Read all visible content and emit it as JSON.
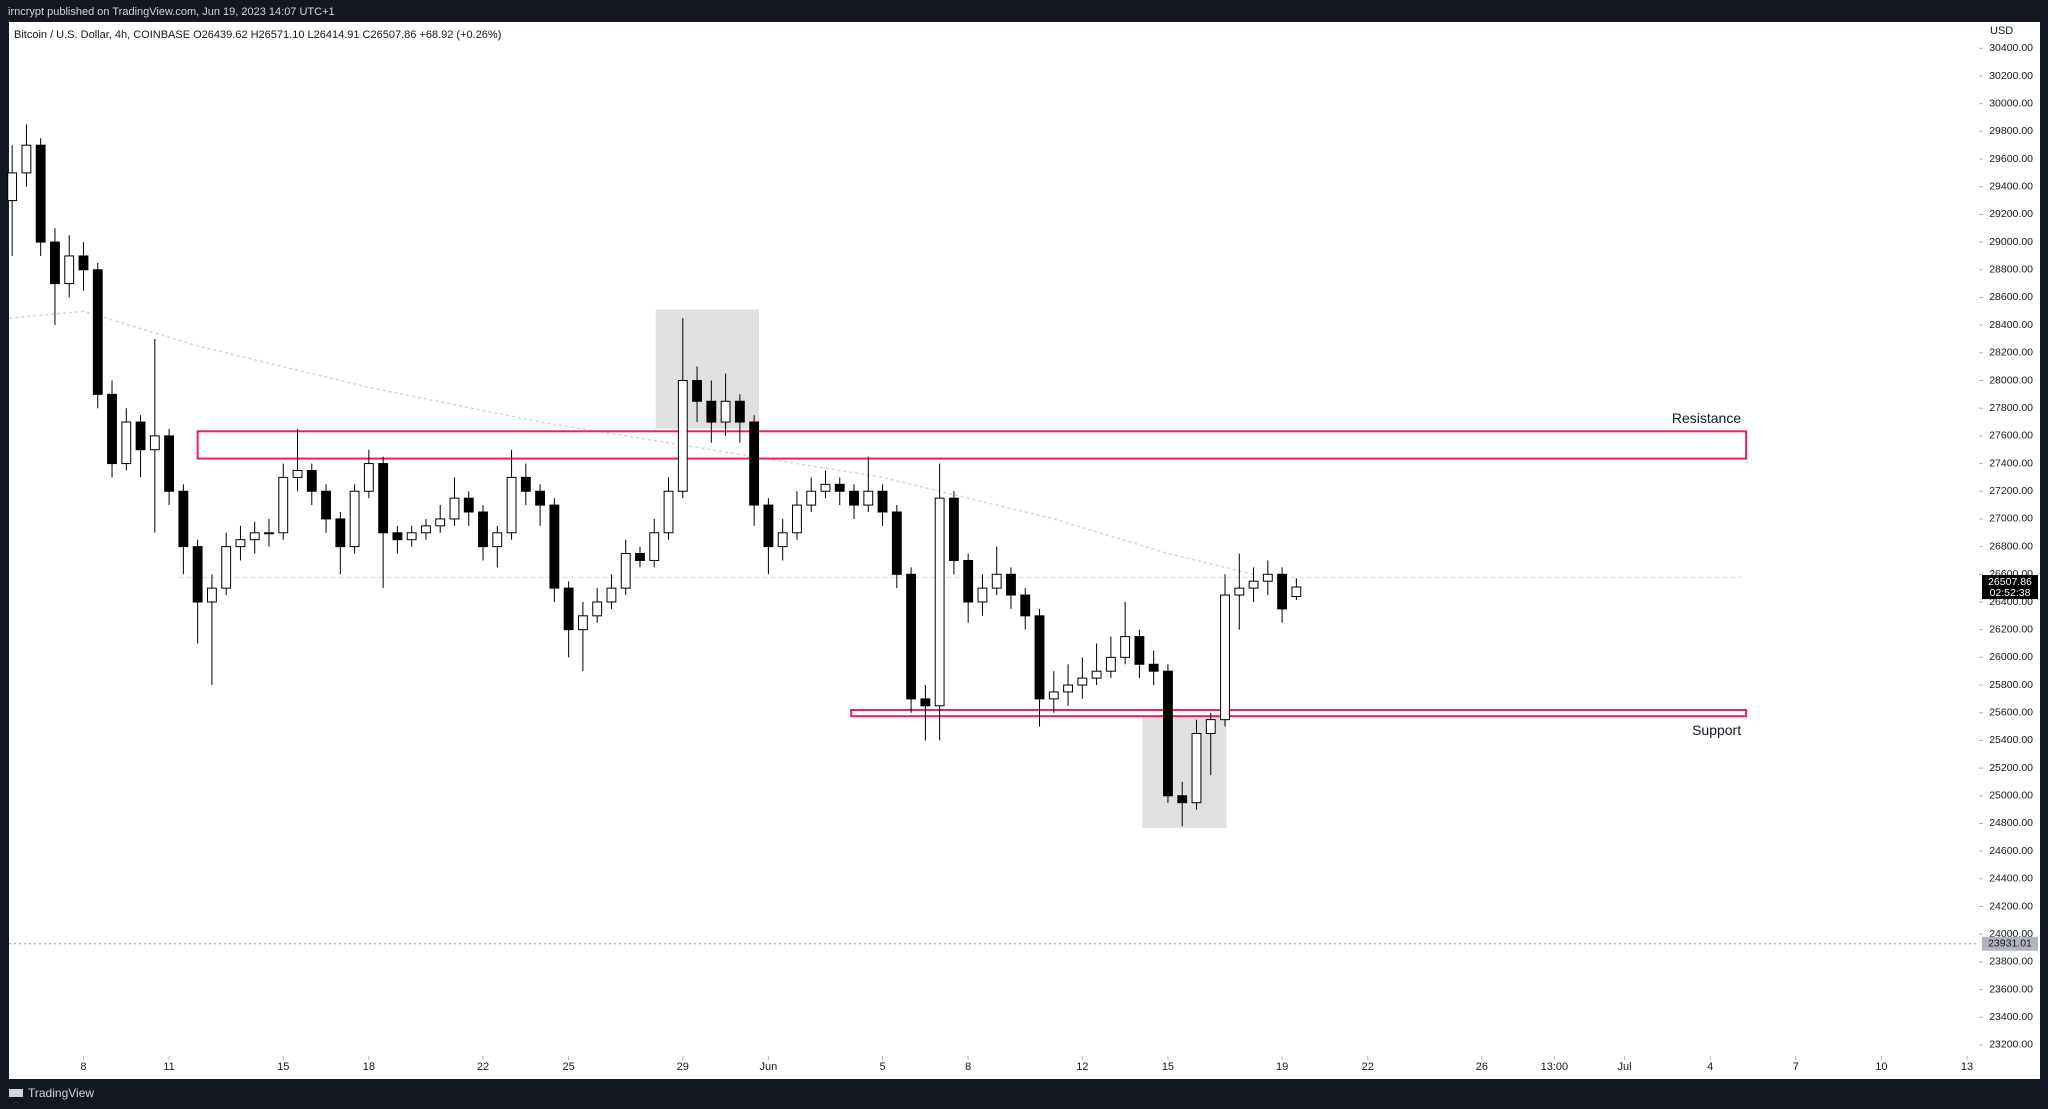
{
  "header": {
    "published": "irncrypt published on TradingView.com, Jun 19, 2023 14:07 UTC+1"
  },
  "footer": {
    "brand": "TradingView"
  },
  "chart_data": {
    "type": "candlestick",
    "title": "Bitcoin / U.S. Dollar, 4h, COINBASE  O26439.62  H26571.10  L26414.91  C26507.86  +68.92 (+0.26%)",
    "currency": "USD",
    "up_color": "#ffffff",
    "down_color": "#000000",
    "outline_color": "#000000",
    "grid": false,
    "x": [
      5.5,
      6,
      6.5,
      7,
      7.5,
      8,
      8.5,
      9,
      9.5,
      10,
      10.5,
      11,
      11.5,
      12,
      12.5,
      13,
      13.5,
      14,
      14.5,
      15,
      15.5,
      16,
      16.5,
      17,
      17.5,
      18,
      18.5,
      19,
      19.5,
      20,
      20.5,
      21,
      21.5,
      22,
      22.5,
      23,
      23.5,
      24,
      24.5,
      25,
      25.5,
      26,
      26.5,
      27,
      27.5,
      28,
      28.5,
      29,
      29.5,
      30,
      30.5,
      31,
      31.5,
      32,
      32.5,
      33,
      33.5,
      34,
      34.5,
      35,
      35.5,
      36,
      36.5,
      37,
      37.5,
      38,
      38.5,
      39,
      39.5,
      40,
      40.5,
      41,
      41.5,
      42,
      42.5,
      43,
      43.5,
      44,
      44.5,
      45,
      45.5,
      46,
      46.5,
      47,
      47.5,
      48,
      48.5,
      49,
      49.5,
      50,
      50.5
    ],
    "open": [
      29300,
      29500,
      29700,
      29000,
      28700,
      28900,
      28800,
      27900,
      27400,
      27700,
      27500,
      27600,
      27200,
      26800,
      26400,
      26500,
      26800,
      26850,
      26900,
      26900,
      27300,
      27350,
      27200,
      27000,
      26800,
      27200,
      27400,
      26900,
      26850,
      26900,
      26950,
      27000,
      27150,
      27050,
      26800,
      26900,
      27300,
      27200,
      27100,
      26500,
      26200,
      26300,
      26400,
      26500,
      26750,
      26700,
      26900,
      27200,
      28000,
      27850,
      27700,
      27850,
      27700,
      27100,
      26800,
      26900,
      27100,
      27200,
      27250,
      27200,
      27100,
      27200,
      27050,
      26600,
      25700,
      25650,
      27150,
      26700,
      26400,
      26500,
      26600,
      26450,
      26300,
      25700,
      25750,
      25800,
      25850,
      25900,
      26000,
      26150,
      25950,
      25900,
      25000,
      24950,
      25450,
      25550,
      26450,
      26500,
      26550,
      26600,
      26439.62
    ],
    "high": [
      29700,
      29850,
      29750,
      29100,
      29050,
      29000,
      28850,
      28000,
      27800,
      27750,
      28300,
      27650,
      27250,
      26850,
      26600,
      26900,
      26950,
      26980,
      27000,
      27400,
      27650,
      27400,
      27250,
      27050,
      27250,
      27500,
      27450,
      26950,
      26950,
      27000,
      27100,
      27300,
      27200,
      27100,
      26950,
      27500,
      27400,
      27250,
      27150,
      26550,
      26400,
      26500,
      26600,
      26850,
      26800,
      27000,
      27300,
      28450,
      28100,
      28000,
      28050,
      27900,
      27750,
      27150,
      27000,
      27200,
      27300,
      27350,
      27300,
      27250,
      27450,
      27250,
      27100,
      26650,
      25800,
      27400,
      27200,
      26750,
      26600,
      26800,
      26650,
      26500,
      26350,
      25900,
      25950,
      26000,
      26100,
      26150,
      26400,
      26200,
      26050,
      25950,
      25100,
      25550,
      25600,
      26600,
      26750,
      26650,
      26700,
      26650,
      26571.1
    ],
    "low": [
      28900,
      29400,
      28900,
      28400,
      28600,
      28650,
      27800,
      27300,
      27350,
      27300,
      26900,
      27100,
      26600,
      26100,
      25800,
      26450,
      26700,
      26750,
      26800,
      26850,
      27200,
      27100,
      26900,
      26600,
      26750,
      27150,
      26500,
      26750,
      26800,
      26850,
      26900,
      26950,
      26950,
      26700,
      26650,
      26850,
      27100,
      26950,
      26400,
      26000,
      25900,
      26250,
      26350,
      26450,
      26650,
      26650,
      26850,
      27150,
      27700,
      27550,
      27600,
      27550,
      26950,
      26600,
      26700,
      26850,
      27050,
      27150,
      27100,
      27000,
      27050,
      26950,
      26500,
      25600,
      25400,
      25400,
      26600,
      26250,
      26300,
      26450,
      26350,
      26200,
      25500,
      25600,
      25650,
      25700,
      25800,
      25850,
      25950,
      25850,
      25800,
      24950,
      24780,
      24900,
      25150,
      25500,
      26200,
      26400,
      26450,
      26250,
      26414.91
    ],
    "close": [
      29500,
      29700,
      29000,
      28700,
      28900,
      28800,
      27900,
      27400,
      27700,
      27500,
      27600,
      27200,
      26800,
      26400,
      26500,
      26800,
      26850,
      26900,
      26900,
      27300,
      27350,
      27200,
      27000,
      26800,
      27200,
      27400,
      26900,
      26850,
      26900,
      26950,
      27000,
      27150,
      27050,
      26800,
      26900,
      27300,
      27200,
      27100,
      26500,
      26200,
      26300,
      26400,
      26500,
      26750,
      26700,
      26900,
      27200,
      28000,
      27850,
      27700,
      27850,
      27700,
      27100,
      26800,
      26900,
      27100,
      27200,
      27250,
      27200,
      27100,
      27200,
      27050,
      26600,
      25700,
      25650,
      27150,
      26700,
      26400,
      26500,
      26600,
      26450,
      26300,
      25700,
      25750,
      25800,
      25850,
      25900,
      26000,
      26150,
      25950,
      25900,
      25000,
      24950,
      25450,
      25550,
      26450,
      26500,
      26550,
      26600,
      26350,
      26507.86
    ],
    "countdown": "02:52:38",
    "level_line": 23931.01,
    "moving_average": {
      "color": "#d1d4dc",
      "x": [
        5.4,
        8,
        12,
        18,
        24,
        30,
        36,
        42,
        46,
        49
      ],
      "values": [
        28450,
        28500,
        28250,
        27950,
        27700,
        27500,
        27300,
        27000,
        26750,
        26600
      ]
    },
    "levels": [
      {
        "value": 26578,
        "x": [
          11.35,
          66.1
        ],
        "color": "#d1d4dc"
      }
    ],
    "highlights": [
      {
        "x": [
          28.05,
          31.67
        ],
        "y": [
          27654,
          28513
        ],
        "color": "#e0e0e0"
      },
      {
        "x": [
          45.1,
          48.05
        ],
        "y": [
          24766,
          25577
        ],
        "color": "#e0e0e0"
      }
    ],
    "zones": [
      {
        "label": "Resistance",
        "x": [
          12.0,
          66.26
        ],
        "y": [
          27436,
          27633
        ],
        "color": "#e91e63",
        "label_position": "above"
      },
      {
        "label": "Support",
        "x": [
          34.9,
          66.26
        ],
        "y": [
          25575,
          25620
        ],
        "color": "#e91e63",
        "label_position": "below"
      }
    ],
    "xlim": [
      5.39,
      74.42
    ],
    "ylim": [
      23120,
      30590
    ],
    "xticks": [
      8,
      11,
      15,
      18,
      22,
      25,
      29,
      {
        "value": 32,
        "label": "Jun"
      },
      {
        "value": 36,
        "label": "5"
      },
      {
        "value": 39,
        "label": "8"
      },
      {
        "value": 43,
        "label": "12"
      },
      {
        "value": 46,
        "label": "15"
      },
      {
        "value": 50,
        "label": "19"
      },
      {
        "value": 53,
        "label": "22"
      },
      {
        "value": 57,
        "label": "26"
      },
      {
        "value": 59.54,
        "label": "13:00"
      },
      {
        "value": 62,
        "label": "Jul"
      },
      {
        "value": 65,
        "label": "4"
      },
      {
        "value": 68,
        "label": "7"
      },
      {
        "value": 71,
        "label": "10"
      },
      {
        "value": 74,
        "label": "13"
      }
    ],
    "yticks": [
      {
        "value": 23200,
        "label": "23200.00"
      },
      {
        "value": 23400,
        "label": "23400.00"
      },
      {
        "value": 23600,
        "label": "23600.00"
      },
      {
        "value": 23800,
        "label": "23800.00"
      },
      {
        "value": 24000,
        "label": "24000.00"
      },
      {
        "value": 24200,
        "label": "24200.00"
      },
      {
        "value": 24400,
        "label": "24400.00"
      },
      {
        "value": 24600,
        "label": "24600.00"
      },
      {
        "value": 24800,
        "label": "24800.00"
      },
      {
        "value": 25000,
        "label": "25000.00"
      },
      {
        "value": 25200,
        "label": "25200.00"
      },
      {
        "value": 25400,
        "label": "25400.00"
      },
      {
        "value": 25600,
        "label": "25600.00"
      },
      {
        "value": 25800,
        "label": "25800.00"
      },
      {
        "value": 26000,
        "label": "26000.00"
      },
      {
        "value": 26200,
        "label": "26200.00"
      },
      {
        "value": 26400,
        "label": "26400.00"
      },
      {
        "value": 26600,
        "label": "26600.00"
      },
      {
        "value": 26800,
        "label": "26800.00"
      },
      {
        "value": 27000,
        "label": "27000.00"
      },
      {
        "value": 27200,
        "label": "27200.00"
      },
      {
        "value": 27400,
        "label": "27400.00"
      },
      {
        "value": 27600,
        "label": "27600.00"
      },
      {
        "value": 27800,
        "label": "27800.00"
      },
      {
        "value": 28000,
        "label": "28000.00"
      },
      {
        "value": 28200,
        "label": "28200.00"
      },
      {
        "value": 28400,
        "label": "28400.00"
      },
      {
        "value": 28600,
        "label": "28600.00"
      },
      {
        "value": 28800,
        "label": "28800.00"
      },
      {
        "value": 29000,
        "label": "29000.00"
      },
      {
        "value": 29200,
        "label": "29200.00"
      },
      {
        "value": 29400,
        "label": "29400.00"
      },
      {
        "value": 29600,
        "label": "29600.00"
      },
      {
        "value": 29800,
        "label": "29800.00"
      },
      {
        "value": 30000,
        "label": "30000.00"
      },
      {
        "value": 30200,
        "label": "30200.00"
      },
      {
        "value": 30400,
        "label": "30400.00"
      }
    ]
  }
}
